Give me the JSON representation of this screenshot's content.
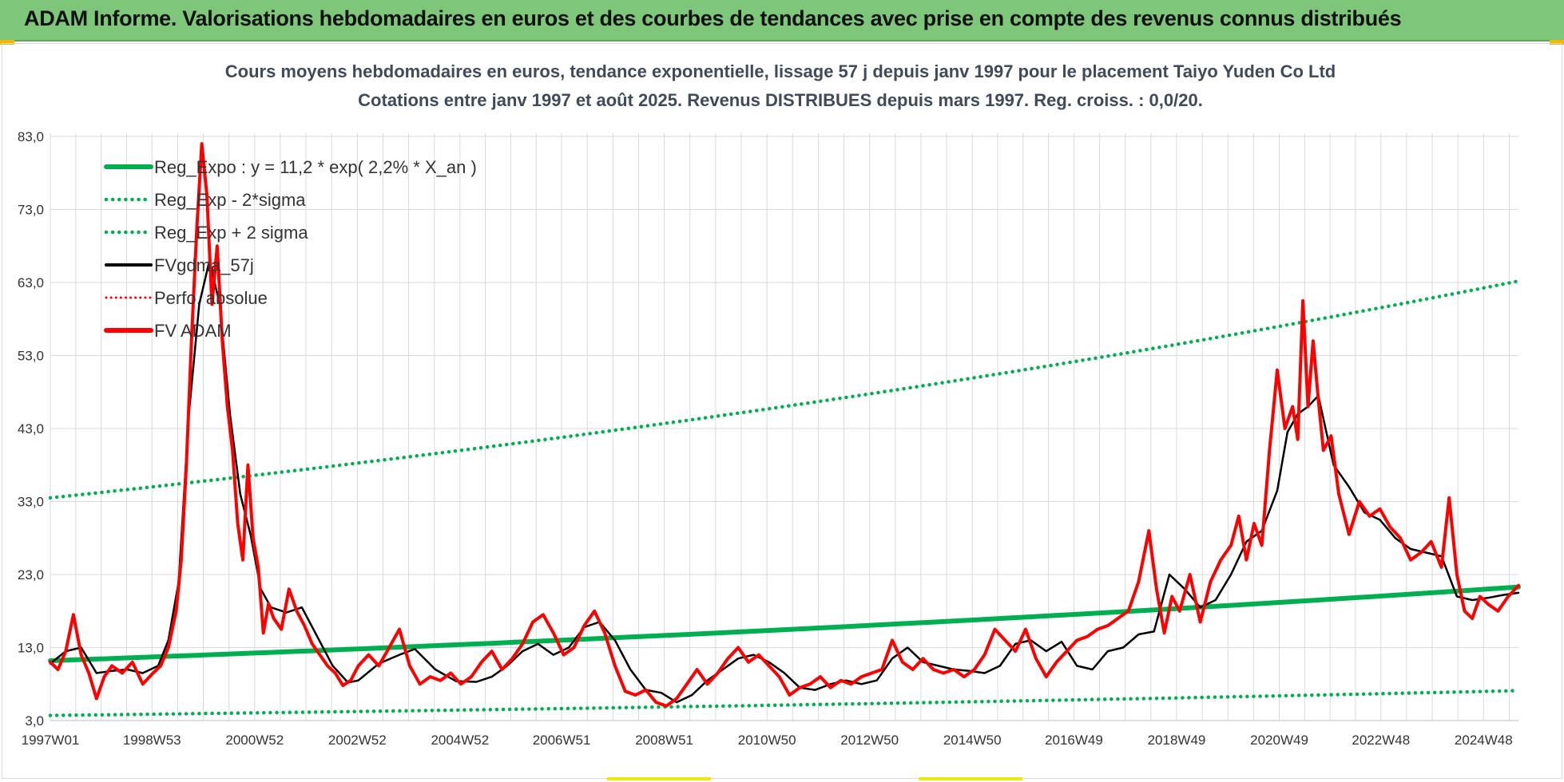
{
  "banner": {
    "title": "ADAM Informe. Valorisations hebdomadaires en euros et des courbes de tendances avec prise en compte des revenus connus distribués"
  },
  "colors": {
    "banner_bg": "#7dc67a",
    "reg_expo": "#00b050",
    "sigma": "#00b050",
    "fvgdma": "#000000",
    "perfo": "#ff0000",
    "fvadam": "#ff0000",
    "grid": "#d9d9d9"
  },
  "chart_data": {
    "type": "line",
    "title": "Cours moyens hebdomadaires en euros, tendance exponentielle, lissage 57 j depuis janv 1997 pour le placement Taiyo Yuden Co Ltd",
    "subtitle": "Cotations entre janv 1997 et août 2025.  Revenus DISTRIBUES depuis mars 1997. Reg. croiss. : 0,0/20.",
    "xlabel": "",
    "ylabel": "",
    "ylim": [
      3,
      83
    ],
    "xlim": [
      1997.0,
      2025.6
    ],
    "yticks": [
      3,
      13,
      23,
      33,
      43,
      53,
      63,
      73,
      83
    ],
    "ytick_labels": [
      "3,0",
      "13,0",
      "23,0",
      "33,0",
      "43,0",
      "53,0",
      "63,0",
      "73,0",
      "83,0"
    ],
    "xticks": [
      1997.0,
      1998.98,
      2000.98,
      2002.98,
      2004.98,
      2006.96,
      2008.96,
      2010.96,
      2012.96,
      2014.96,
      2016.94,
      2018.94,
      2020.94,
      2022.92,
      2024.92
    ],
    "xtick_labels": [
      "1997W01",
      "1998W53",
      "2000W52",
      "2002W52",
      "2004W52",
      "2006W51",
      "2008W51",
      "2010W50",
      "2012W50",
      "2014W50",
      "2016W49",
      "2018W49",
      "2020W49",
      "2022W48",
      "2024W48"
    ],
    "grid": true,
    "legend_position": "top-left",
    "legend": [
      {
        "label": "Reg_Expo : y = 11,2 * exp( 2,2% *  X_an )",
        "style": "solid-thick",
        "color": "#00b050"
      },
      {
        "label": "Reg_Exp - 2*sigma",
        "style": "dotted",
        "color": "#00b050"
      },
      {
        "label": "Reg_Exp + 2 sigma",
        "style": "dotted",
        "color": "#00b050"
      },
      {
        "label": "FVgdma_57j",
        "style": "solid",
        "color": "#000000"
      },
      {
        "label": "Perfo. absolue",
        "style": "dotted",
        "color": "#ff0000"
      },
      {
        "label": "FV ADAM",
        "style": "solid-thick",
        "color": "#ff0000"
      }
    ],
    "series": [
      {
        "name": "Reg_Expo : y = 11,2 * exp( 2,2% *  X_an )",
        "x": [
          1997.0,
          2025.6
        ],
        "values": [
          11.2,
          21.3
        ]
      },
      {
        "name": "Reg_Exp - 2*sigma",
        "x": [
          1997.0,
          2025.6
        ],
        "values": [
          3.7,
          7.1
        ]
      },
      {
        "name": "Reg_Exp + 2 sigma",
        "x": [
          1997.0,
          2025.6
        ],
        "values": [
          33.5,
          63.2
        ]
      },
      {
        "name": "FVgdma_57j",
        "x": [
          1997.0,
          1997.3,
          1997.6,
          1997.9,
          1998.2,
          1998.5,
          1998.8,
          1999.1,
          1999.3,
          1999.5,
          1999.7,
          1999.9,
          2000.1,
          2000.3,
          2000.5,
          2000.7,
          2000.9,
          2001.1,
          2001.3,
          2001.6,
          2001.9,
          2002.2,
          2002.5,
          2002.8,
          2003.0,
          2003.4,
          2003.8,
          2004.1,
          2004.5,
          2004.9,
          2005.3,
          2005.6,
          2005.9,
          2006.2,
          2006.5,
          2006.8,
          2007.1,
          2007.4,
          2007.7,
          2008.0,
          2008.3,
          2008.6,
          2008.9,
          2009.2,
          2009.5,
          2009.8,
          2010.1,
          2010.4,
          2010.7,
          2011.0,
          2011.3,
          2011.6,
          2011.9,
          2012.2,
          2012.5,
          2012.8,
          2013.1,
          2013.4,
          2013.7,
          2014.0,
          2014.3,
          2014.6,
          2014.9,
          2015.2,
          2015.5,
          2015.8,
          2016.1,
          2016.4,
          2016.7,
          2017.0,
          2017.3,
          2017.6,
          2017.9,
          2018.2,
          2018.5,
          2018.8,
          2019.1,
          2019.4,
          2019.7,
          2020.0,
          2020.3,
          2020.6,
          2020.9,
          2021.1,
          2021.3,
          2021.5,
          2021.7,
          2022.0,
          2022.3,
          2022.6,
          2022.9,
          2023.2,
          2023.5,
          2023.8,
          2024.1,
          2024.4,
          2024.7,
          2025.0,
          2025.3,
          2025.6
        ],
        "values": [
          10.8,
          12.5,
          13.0,
          9.5,
          9.8,
          10.0,
          9.5,
          10.5,
          14.0,
          22.0,
          45.0,
          60.0,
          66.0,
          60.0,
          45.0,
          34.0,
          28.5,
          21.0,
          18.5,
          17.8,
          18.5,
          14.5,
          10.5,
          8.2,
          8.5,
          10.8,
          12.0,
          12.8,
          10.0,
          8.4,
          8.3,
          9.0,
          10.5,
          12.5,
          13.5,
          12.0,
          13.0,
          15.8,
          16.5,
          14.0,
          10.0,
          7.2,
          6.8,
          5.5,
          6.5,
          8.5,
          10.0,
          11.5,
          12.0,
          11.0,
          9.5,
          7.5,
          7.2,
          8.0,
          8.5,
          8.0,
          8.5,
          11.5,
          13.0,
          11.0,
          10.5,
          10.0,
          9.8,
          9.5,
          10.5,
          13.5,
          14.0,
          12.5,
          13.8,
          10.5,
          10.0,
          12.5,
          13.0,
          14.8,
          15.2,
          23.0,
          21.0,
          18.5,
          19.5,
          23.0,
          27.5,
          29.0,
          34.5,
          42.5,
          45.0,
          46.0,
          47.5,
          38.0,
          35.0,
          31.5,
          30.5,
          28.0,
          26.5,
          26.0,
          25.5,
          20.0,
          19.5,
          19.8,
          20.2,
          20.5
        ]
      },
      {
        "name": "FV ADAM",
        "x": [
          1997.0,
          1997.15,
          1997.3,
          1997.45,
          1997.6,
          1997.75,
          1997.9,
          1998.05,
          1998.2,
          1998.4,
          1998.6,
          1998.8,
          1999.0,
          1999.15,
          1999.3,
          1999.45,
          1999.55,
          1999.65,
          1999.75,
          1999.85,
          1999.95,
          2000.05,
          2000.15,
          2000.25,
          2000.35,
          2000.45,
          2000.55,
          2000.65,
          2000.75,
          2000.85,
          2000.95,
          2001.05,
          2001.15,
          2001.25,
          2001.35,
          2001.5,
          2001.65,
          2001.8,
          2001.95,
          2002.1,
          2002.25,
          2002.4,
          2002.55,
          2002.7,
          2002.85,
          2003.0,
          2003.2,
          2003.4,
          2003.6,
          2003.8,
          2004.0,
          2004.2,
          2004.4,
          2004.6,
          2004.8,
          2005.0,
          2005.2,
          2005.4,
          2005.6,
          2005.8,
          2006.0,
          2006.2,
          2006.4,
          2006.6,
          2006.8,
          2007.0,
          2007.2,
          2007.4,
          2007.6,
          2007.8,
          2008.0,
          2008.2,
          2008.4,
          2008.6,
          2008.8,
          2009.0,
          2009.2,
          2009.4,
          2009.6,
          2009.8,
          2010.0,
          2010.2,
          2010.4,
          2010.6,
          2010.8,
          2011.0,
          2011.2,
          2011.4,
          2011.6,
          2011.8,
          2012.0,
          2012.2,
          2012.4,
          2012.6,
          2012.8,
          2013.0,
          2013.2,
          2013.4,
          2013.6,
          2013.8,
          2014.0,
          2014.2,
          2014.4,
          2014.6,
          2014.8,
          2015.0,
          2015.2,
          2015.4,
          2015.6,
          2015.8,
          2016.0,
          2016.2,
          2016.4,
          2016.6,
          2016.8,
          2017.0,
          2017.2,
          2017.4,
          2017.6,
          2017.8,
          2018.0,
          2018.2,
          2018.4,
          2018.55,
          2018.7,
          2018.85,
          2019.0,
          2019.2,
          2019.4,
          2019.6,
          2019.8,
          2020.0,
          2020.15,
          2020.3,
          2020.45,
          2020.6,
          2020.75,
          2020.9,
          2021.05,
          2021.2,
          2021.3,
          2021.4,
          2021.5,
          2021.6,
          2021.7,
          2021.8,
          2021.95,
          2022.1,
          2022.3,
          2022.5,
          2022.7,
          2022.9,
          2023.1,
          2023.3,
          2023.5,
          2023.7,
          2023.9,
          2024.1,
          2024.25,
          2024.4,
          2024.55,
          2024.7,
          2024.85,
          2025.0,
          2025.2,
          2025.4,
          2025.6
        ],
        "values": [
          11.0,
          10.0,
          12.5,
          17.5,
          12.0,
          9.5,
          6.0,
          9.0,
          10.5,
          9.5,
          11.0,
          8.0,
          9.5,
          10.5,
          13.0,
          18.0,
          25.0,
          38.0,
          55.0,
          70.0,
          82.0,
          75.0,
          60.0,
          68.0,
          55.0,
          46.0,
          40.0,
          30.0,
          25.0,
          38.0,
          28.0,
          24.0,
          15.0,
          19.0,
          17.0,
          15.5,
          21.0,
          18.0,
          16.0,
          13.5,
          12.0,
          10.5,
          9.5,
          7.8,
          8.5,
          10.5,
          12.0,
          10.5,
          13.0,
          15.5,
          10.5,
          8.0,
          9.0,
          8.5,
          9.5,
          8.0,
          9.0,
          11.0,
          12.5,
          10.0,
          11.5,
          13.5,
          16.5,
          17.5,
          15.0,
          12.0,
          13.0,
          16.0,
          18.0,
          15.0,
          10.5,
          7.0,
          6.5,
          7.2,
          5.5,
          5.0,
          6.0,
          8.0,
          10.0,
          8.0,
          9.5,
          11.5,
          13.0,
          11.0,
          12.0,
          10.5,
          9.0,
          6.5,
          7.5,
          8.0,
          9.0,
          7.5,
          8.5,
          8.0,
          9.0,
          9.5,
          10.0,
          14.0,
          11.0,
          10.0,
          11.5,
          10.0,
          9.5,
          10.0,
          9.0,
          10.0,
          12.0,
          15.5,
          14.0,
          12.5,
          15.5,
          11.5,
          9.0,
          11.0,
          12.5,
          14.0,
          14.5,
          15.5,
          16.0,
          17.0,
          18.0,
          22.0,
          29.0,
          21.0,
          15.0,
          20.0,
          18.0,
          23.0,
          16.5,
          22.0,
          25.0,
          27.0,
          31.0,
          25.0,
          30.0,
          27.0,
          40.0,
          51.0,
          43.0,
          46.0,
          41.5,
          60.5,
          46.0,
          55.0,
          47.0,
          40.0,
          42.0,
          34.0,
          28.5,
          33.0,
          31.0,
          32.0,
          29.5,
          28.0,
          25.0,
          26.0,
          27.5,
          24.0,
          33.5,
          23.0,
          18.0,
          17.0,
          20.0,
          19.0,
          18.0,
          20.0,
          21.5
        ]
      }
    ]
  }
}
